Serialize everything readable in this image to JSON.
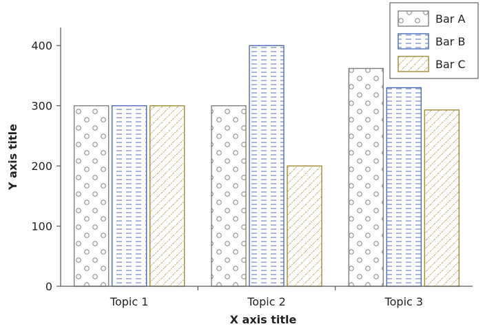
{
  "chart_data": {
    "type": "bar",
    "title": "",
    "xlabel": "X axis title",
    "ylabel": "Y axis title",
    "categories": [
      "Topic 1",
      "Topic 2",
      "Topic 3"
    ],
    "ylim": [
      0,
      430
    ],
    "yticks": [
      0,
      100,
      200,
      300,
      400
    ],
    "grid": false,
    "legend_position": "top-right",
    "series": [
      {
        "name": "Bar A",
        "values": [
          300,
          300,
          362
        ],
        "color": "#7f7f7f",
        "pattern": "circles"
      },
      {
        "name": "Bar B",
        "values": [
          300,
          400,
          330
        ],
        "color": "#4a69bd",
        "pattern": "dashes"
      },
      {
        "name": "Bar C",
        "values": [
          300,
          200,
          293
        ],
        "color": "#a08a2e",
        "pattern": "diagonal"
      }
    ]
  }
}
